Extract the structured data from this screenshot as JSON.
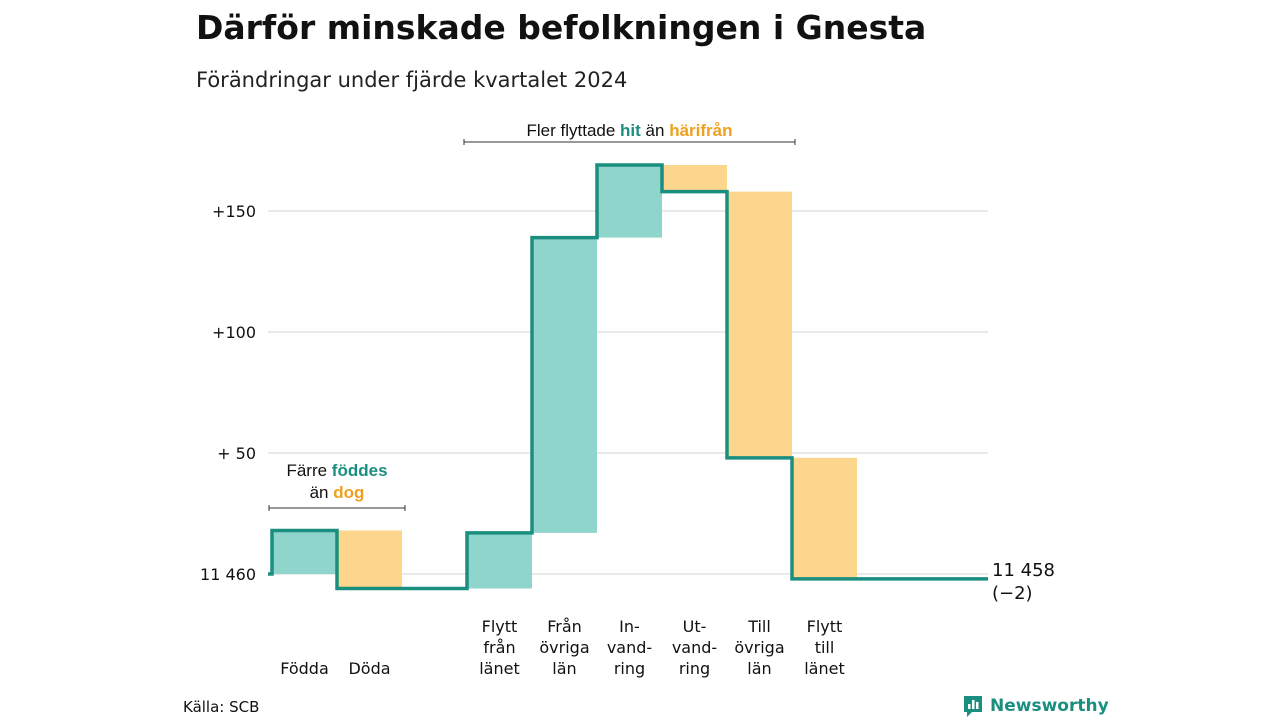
{
  "header": {
    "title": "Därför minskade befolkningen i Gnesta",
    "subtitle": "Förändringar under fjärde kvartalet 2024"
  },
  "footer": {
    "source": "Källa: SCB",
    "logo_text": "Newsworthy",
    "logo_icon": "bar-chart-speech-bubble-icon"
  },
  "colors": {
    "inflow": "#8fd5cc",
    "outflow": "#fbd68c",
    "line": "#1a8f80",
    "orange_text": "#f0a020",
    "grid": "#dddddd"
  },
  "chart_data": {
    "type": "waterfall",
    "baseline_label": "11 460",
    "start_value": 11460,
    "end_label": "11 458",
    "end_change_label": "(−2)",
    "y_ticks": [
      {
        "value": 150,
        "label": "+150"
      },
      {
        "value": 100,
        "label": "+100"
      },
      {
        "value": 50,
        "label": "+ 50"
      },
      {
        "value": 0,
        "label": "11 460"
      }
    ],
    "ylim": [
      -10,
      165
    ],
    "steps": [
      {
        "label": [
          "Födda"
        ],
        "delta": 18,
        "kind": "inflow",
        "slot": 0
      },
      {
        "label": [
          "Döda"
        ],
        "delta": -24,
        "kind": "outflow",
        "slot": 1
      },
      {
        "label": [
          "Flytt",
          "från",
          "länet"
        ],
        "delta": 23,
        "kind": "inflow",
        "slot": 3
      },
      {
        "label": [
          "Från",
          "övriga",
          "län"
        ],
        "delta": 122,
        "kind": "inflow",
        "slot": 4
      },
      {
        "label": [
          "In-",
          "vand-",
          "ring"
        ],
        "delta": 30,
        "kind": "inflow",
        "slot": 5
      },
      {
        "label": [
          "Ut-",
          "vand-",
          "ring"
        ],
        "delta": -11,
        "kind": "outflow",
        "slot": 6
      },
      {
        "label": [
          "Till",
          "övriga",
          "län"
        ],
        "delta": -110,
        "kind": "outflow",
        "slot": 7
      },
      {
        "label": [
          "Flytt",
          "till",
          "länet"
        ],
        "delta": -50,
        "kind": "outflow",
        "slot": 8
      }
    ],
    "annotations": [
      {
        "parts": [
          {
            "text": "Färre ",
            "color": "plain"
          },
          {
            "text": "föddes",
            "color": "inflow"
          }
        ],
        "line2": [
          {
            "text": "än ",
            "color": "plain"
          },
          {
            "text": "dog",
            "color": "outflow"
          }
        ],
        "span_slots": [
          0,
          1
        ]
      },
      {
        "parts": [
          {
            "text": "Fler flyttade ",
            "color": "plain"
          },
          {
            "text": "hit",
            "color": "inflow"
          },
          {
            "text": " än ",
            "color": "plain"
          },
          {
            "text": "härifrån",
            "color": "outflow"
          }
        ],
        "span_slots": [
          3,
          8
        ]
      }
    ]
  }
}
